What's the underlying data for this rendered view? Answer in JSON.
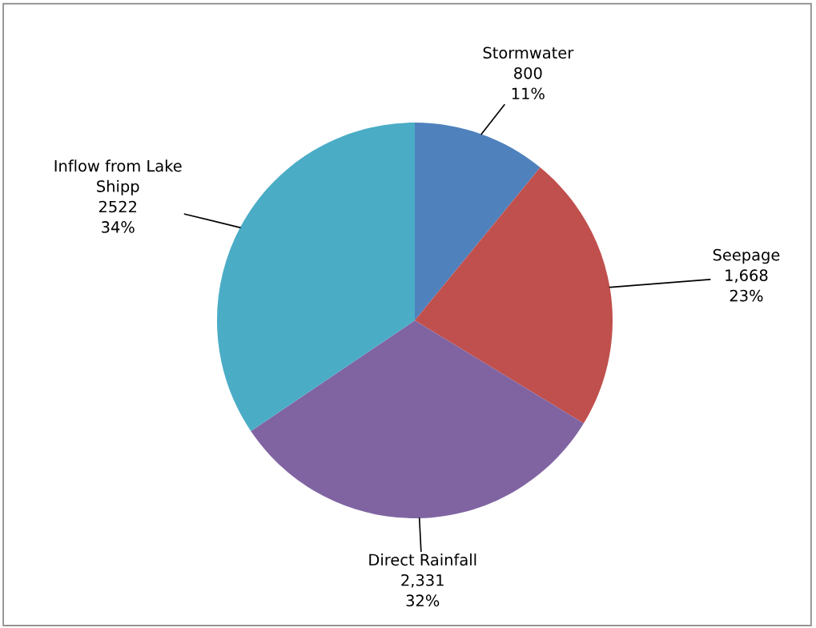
{
  "chart_data": {
    "type": "pie",
    "categories": [
      "Stormwater",
      "Seepage",
      "Direct Rainfall",
      "Inflow from Lake\nShipp"
    ],
    "values": [
      800,
      1668,
      2331,
      2522
    ],
    "colors": [
      "#4f81bd",
      "#c0504d",
      "#8064a2",
      "#4bacc6"
    ],
    "value_labels": [
      "800\n11%",
      "1,668\n23%",
      "2,331\n32%",
      "2522\n34%"
    ],
    "legend": false
  }
}
